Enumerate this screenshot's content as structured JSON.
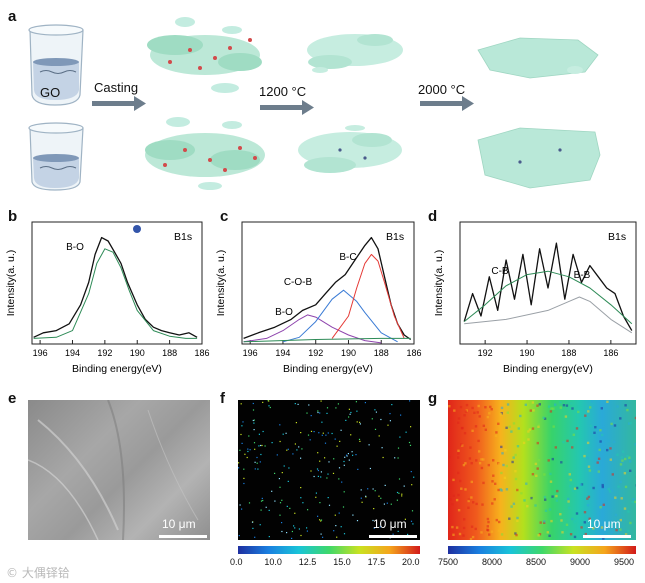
{
  "panel_labels": {
    "a": "a",
    "b": "b",
    "c": "c",
    "d": "d",
    "e": "e",
    "f": "f",
    "g": "g"
  },
  "schematic": {
    "go_label": "GO",
    "step1": "Casting",
    "step2": "1200 °C",
    "step3": "2000 °C"
  },
  "chart_data": [
    {
      "type": "line",
      "panel": "b",
      "title": "B1s",
      "xlabel": "Binding energy(eV)",
      "ylabel": "Intensity(a. u.)",
      "xlim": [
        196.5,
        186
      ],
      "x_ticks": [
        "196",
        "194",
        "192",
        "190",
        "188",
        "186"
      ],
      "annotations": [
        "B-O"
      ],
      "series": [
        {
          "name": "raw",
          "color": "#111111",
          "x": [
            196.4,
            195.8,
            195,
            194.2,
            193.5,
            193,
            192.6,
            192.2,
            191.8,
            191.4,
            191,
            190.6,
            190,
            189.5,
            189,
            188.5,
            188,
            187.4,
            186.8,
            186.3
          ],
          "values": [
            0.06,
            0.1,
            0.12,
            0.18,
            0.35,
            0.55,
            0.8,
            0.95,
            0.92,
            0.82,
            0.72,
            0.55,
            0.35,
            0.22,
            0.15,
            0.12,
            0.1,
            0.08,
            0.1,
            0.06
          ]
        },
        {
          "name": "fit B-O",
          "color": "#2e8b57",
          "x": [
            196.4,
            195,
            194,
            193,
            192.5,
            192,
            191.5,
            191,
            190.5,
            190,
            189,
            188,
            187,
            186.3
          ],
          "values": [
            0.05,
            0.06,
            0.12,
            0.45,
            0.72,
            0.85,
            0.82,
            0.68,
            0.48,
            0.3,
            0.12,
            0.07,
            0.05,
            0.05
          ]
        }
      ]
    },
    {
      "type": "line",
      "panel": "c",
      "title": "B1s",
      "xlabel": "Binding energy(eV)",
      "ylabel": "Intensity(a. u.)",
      "xlim": [
        196.5,
        186
      ],
      "x_ticks": [
        "196",
        "194",
        "192",
        "190",
        "188",
        "186"
      ],
      "annotations": [
        "B-O",
        "C-O-B",
        "B-C"
      ],
      "series": [
        {
          "name": "raw",
          "color": "#111111",
          "x": [
            196.4,
            195.5,
            194.5,
            193.5,
            192.8,
            192,
            191.4,
            190.8,
            190.2,
            189.6,
            189,
            188.6,
            188.2,
            187.8,
            187.4,
            187,
            186.6,
            186.2
          ],
          "values": [
            0.05,
            0.1,
            0.15,
            0.22,
            0.3,
            0.35,
            0.45,
            0.55,
            0.62,
            0.75,
            0.88,
            0.95,
            0.85,
            0.6,
            0.35,
            0.18,
            0.08,
            0.04
          ]
        },
        {
          "name": "B-O",
          "color": "#8e44ad",
          "x": [
            196.4,
            195,
            194,
            193,
            192.5,
            192,
            191,
            190,
            189,
            188
          ],
          "values": [
            0.02,
            0.05,
            0.12,
            0.22,
            0.26,
            0.24,
            0.15,
            0.08,
            0.03,
            0.01
          ]
        },
        {
          "name": "C-O-B",
          "color": "#3a7bd5",
          "x": [
            194,
            193,
            192,
            191,
            190.3,
            189.5,
            189,
            188,
            187
          ],
          "values": [
            0.02,
            0.06,
            0.2,
            0.4,
            0.48,
            0.38,
            0.28,
            0.1,
            0.02
          ]
        },
        {
          "name": "B-C",
          "color": "#e53935",
          "x": [
            191,
            190,
            189.5,
            189,
            188.6,
            188.2,
            187.8,
            187.2,
            186.6
          ],
          "values": [
            0.05,
            0.25,
            0.5,
            0.72,
            0.8,
            0.74,
            0.55,
            0.25,
            0.05
          ]
        },
        {
          "name": "baseline",
          "color": "#2e8b57",
          "x": [
            196.4,
            192,
            188,
            186.2
          ],
          "values": [
            0.02,
            0.04,
            0.05,
            0.05
          ]
        }
      ]
    },
    {
      "type": "line",
      "panel": "d",
      "title": "B1s",
      "xlabel": "Binding energy(eV)",
      "ylabel": "Intensity(a. u.)",
      "xlim": [
        193.2,
        184.8
      ],
      "x_ticks": [
        "192",
        "190",
        "188",
        "186"
      ],
      "annotations": [
        "C-B",
        "B-B"
      ],
      "series": [
        {
          "name": "raw",
          "color": "#111111",
          "x": [
            193,
            192.6,
            192.2,
            191.8,
            191.4,
            191,
            190.6,
            190.2,
            189.8,
            189.4,
            189,
            188.6,
            188.2,
            187.8,
            187.4,
            187,
            186.6,
            186.2,
            185.8,
            185.4,
            185
          ],
          "values": [
            0.2,
            0.45,
            0.25,
            0.6,
            0.3,
            0.75,
            0.4,
            0.8,
            0.35,
            0.85,
            0.5,
            0.9,
            0.4,
            0.8,
            0.55,
            0.7,
            0.6,
            0.5,
            0.45,
            0.25,
            0.12
          ]
        },
        {
          "name": "fit",
          "color": "#2e8b57",
          "x": [
            193,
            192,
            191,
            190,
            189,
            188,
            187,
            186,
            185
          ],
          "values": [
            0.2,
            0.35,
            0.52,
            0.62,
            0.65,
            0.6,
            0.5,
            0.35,
            0.18
          ]
        },
        {
          "name": "B-B",
          "color": "#9aa0a6",
          "x": [
            193,
            191,
            189,
            188,
            187.5,
            187,
            186,
            185
          ],
          "values": [
            0.18,
            0.22,
            0.3,
            0.38,
            0.42,
            0.38,
            0.22,
            0.1
          ]
        }
      ]
    },
    {
      "type": "heatmap",
      "panel": "f",
      "colorbar_ticks": [
        "0.0",
        "10.0",
        "12.5",
        "15.0",
        "17.5",
        "20.0"
      ]
    },
    {
      "type": "heatmap",
      "panel": "g",
      "colorbar_ticks": [
        "7500",
        "8000",
        "8500",
        "9000",
        "9500"
      ]
    }
  ],
  "scale_bars": {
    "e": "10 μm",
    "f": "10 μm",
    "g": "10 μm"
  },
  "watermark": "© 大偶铎铪",
  "colors": {
    "arrow": "#6d7d8c",
    "graphene": "#8fd3b8",
    "cb_start": "#1e2fa0",
    "cb_end": "#d21a1a"
  }
}
